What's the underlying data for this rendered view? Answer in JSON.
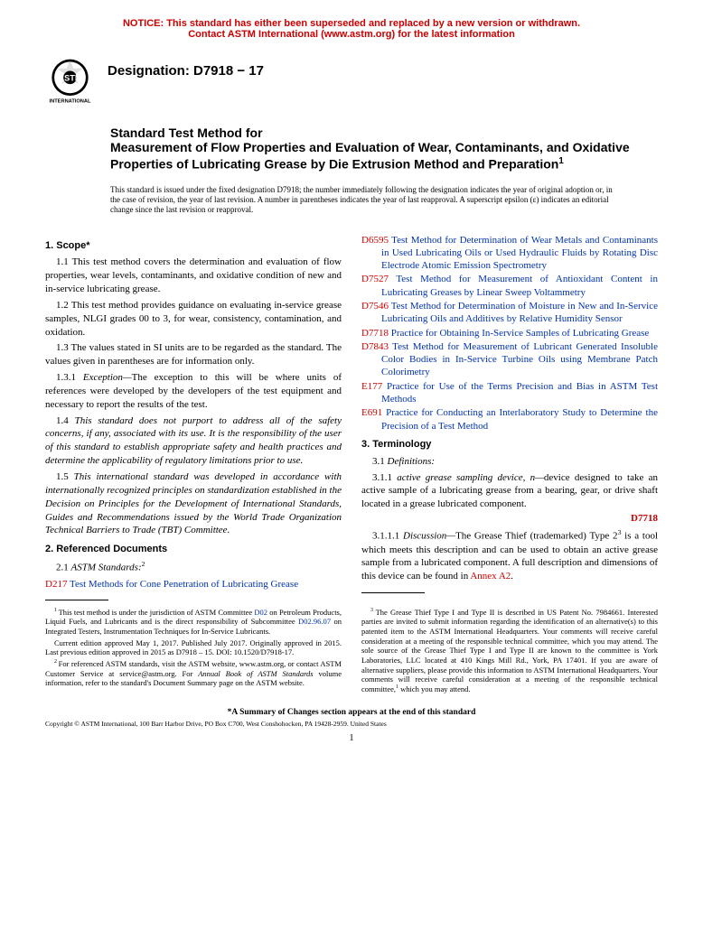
{
  "notice": {
    "line1": "NOTICE: This standard has either been superseded and replaced by a new version or withdrawn.",
    "line2": "Contact ASTM International (www.astm.org) for the latest information",
    "color": "#cc0000"
  },
  "logo": {
    "text_top": "ASTM",
    "text_bottom": "INTERNATIONAL"
  },
  "designation": "Designation: D7918 − 17",
  "title": {
    "superhead": "Standard Test Method for",
    "main": "Measurement of Flow Properties and Evaluation of Wear, Contaminants, and Oxidative Properties of Lubricating Grease by Die Extrusion Method and Preparation",
    "superscript": "1"
  },
  "issue_note": "This standard is issued under the fixed designation D7918; the number immediately following the designation indicates the year of original adoption or, in the case of revision, the year of last revision. A number in parentheses indicates the year of last reapproval. A superscript epsilon (ε) indicates an editorial change since the last revision or reapproval.",
  "left_column": {
    "section1_head": "1. Scope*",
    "para_1_1": "1.1 This test method covers the determination and evaluation of flow properties, wear levels, contaminants, and oxidative condition of new and in-service lubricating grease.",
    "para_1_2": "1.2 This test method provides guidance on evaluating in-service grease samples, NLGI grades 00 to 3, for wear, consistency, contamination, and oxidation.",
    "para_1_3": "1.3 The values stated in SI units are to be regarded as the standard. The values given in parentheses are for information only.",
    "para_1_3_1_label": "1.3.1 ",
    "para_1_3_1_title": "Exception—",
    "para_1_3_1_body": "The exception to this will be where units of references were developed by the developers of the test equipment and necessary to report the results of the test.",
    "para_1_4_num": "1.4 ",
    "para_1_4": "This standard does not purport to address all of the safety concerns, if any, associated with its use. It is the responsibility of the user of this standard to establish appropriate safety and health practices and determine the applicability of regulatory limitations prior to use.",
    "para_1_5_num": "1.5 ",
    "para_1_5": "This international standard was developed in accordance with internationally recognized principles on standardization established in the Decision on Principles for the Development of International Standards, Guides and Recommendations issued by the World Trade Organization Technical Barriers to Trade (TBT) Committee.",
    "section2_head": "2. Referenced Documents",
    "para_2_1_label": "2.1 ",
    "para_2_1_title": "ASTM Standards:",
    "para_2_1_sup": "2",
    "ref_d217_code": "D217",
    "ref_d217_text": " Test Methods for Cone Penetration of Lubricating Grease"
  },
  "right_column": {
    "refs": [
      {
        "code": "D6595",
        "text": " Test Method for Determination of Wear Metals and Contaminants in Used Lubricating Oils or Used Hydraulic Fluids by Rotating Disc Electrode Atomic Emission Spectrometry"
      },
      {
        "code": "D7527",
        "text": " Test Method for Measurement of Antioxidant Content in Lubricating Greases by Linear Sweep Voltammetry"
      },
      {
        "code": "D7546",
        "text": " Test Method for Determination of Moisture in New and In-Service Lubricating Oils and Additives by Relative Humidity Sensor"
      },
      {
        "code": "D7718",
        "text": " Practice for Obtaining In-Service Samples of Lubricating Grease"
      },
      {
        "code": "D7843",
        "text": " Test Method for Measurement of Lubricant Generated Insoluble Color Bodies in In-Service Turbine Oils using Membrane Patch Colorimetry"
      },
      {
        "code": "E177",
        "text": " Practice for Use of the Terms Precision and Bias in ASTM Test Methods"
      },
      {
        "code": "E691",
        "text": " Practice for Conducting an Interlaboratory Study to Determine the Precision of a Test Method"
      }
    ],
    "section3_head": "3. Terminology",
    "para_3_1_label": "3.1 ",
    "para_3_1_title": "Definitions:",
    "para_3_1_1_num": "3.1.1 ",
    "para_3_1_1_term": "active grease sampling device, n—",
    "para_3_1_1_body": "device designed to take an active sample of a lubricating grease from a bearing, gear, or drive shaft located in a grease lubricated component.",
    "ref_d7718_right": "D7718",
    "para_3_1_1_1_num": "3.1.1.1 ",
    "para_3_1_1_1_title": "Discussion—",
    "para_3_1_1_1_body_a": "The Grease Thief (trademarked) Type 2",
    "para_3_1_1_1_sup": "3",
    "para_3_1_1_1_body_b": " is a tool which meets this description and can be used to obtain an active grease sample from a lubricated component. A full description and dimensions of this device can be found in ",
    "para_3_1_1_1_annex": "Annex A2",
    "para_3_1_1_1_body_c": "."
  },
  "footnotes": {
    "left": {
      "fn1_a": "This test method is under the jurisdiction of ASTM Committee ",
      "fn1_link": "D02",
      "fn1_b": " on Petroleum Products, Liquid Fuels, and Lubricants and is the direct responsibility of Subcommittee ",
      "fn1_link2": "D02.96.07",
      "fn1_c": " on Integrated Testers, Instrumentation Techniques for In-Service Lubricants.",
      "fn1_d": "Current edition approved May 1, 2017. Published July 2017. Originally approved in 2015. Last previous edition approved in 2015 as D7918 – 15. DOI: 10.1520/D7918-17.",
      "fn2_a": "For referenced ASTM standards, visit the ASTM website, www.astm.org, or contact ASTM Customer Service at service@astm.org. For ",
      "fn2_b": "Annual Book of ASTM Standards",
      "fn2_c": " volume information, refer to the standard's Document Summary page on the ASTM website."
    },
    "right": {
      "fn3_a": "The Grease Thief Type I and Type II is described in US Patent No. 7984661. Interested parties are invited to submit information regarding the identification of an alternative(s) to this patented item to the ASTM International Headquarters. Your comments will receive careful consideration at a meeting of the responsible technical committee, which you may attend. The sole source of the Grease Thief Type I and Type II are known to the committee is York Laboratories, LLC located at 410 Kings Mill Rd., York, PA 17401. If you are aware of alternative suppliers, please provide this information to ASTM International Headquarters. Your comments will receive careful consideration at a meeting of the responsible technical committee,",
      "fn3_sup": "1",
      "fn3_b": " which you may attend."
    }
  },
  "summary_note": "*A Summary of Changes section appears at the end of this standard",
  "copyright": "Copyright © ASTM International, 100 Barr Harbor Drive, PO Box C700, West Conshohocken, PA 19428-2959. United States",
  "page_number": "1",
  "colors": {
    "notice": "#cc0000",
    "ref_code": "#cc0000",
    "ref_text": "#0033aa"
  }
}
